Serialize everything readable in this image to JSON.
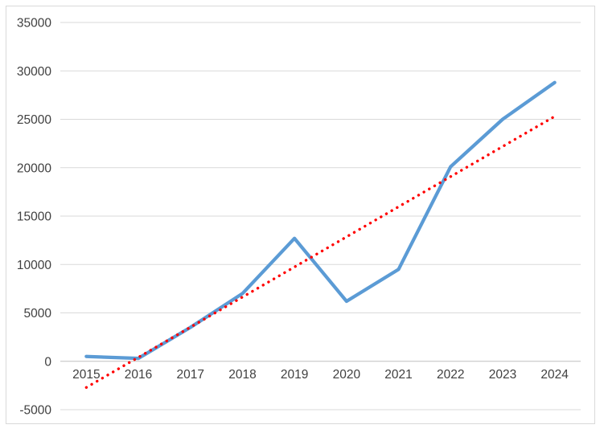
{
  "window": {
    "background": "#FFFFFF"
  },
  "chart_data": {
    "type": "line",
    "title": "",
    "xlabel": "",
    "ylabel": "",
    "categories": [
      "2015",
      "2016",
      "2017",
      "2018",
      "2019",
      "2020",
      "2021",
      "2022",
      "2023",
      "2024"
    ],
    "series": [
      {
        "name": "values",
        "display": "solid",
        "color": "#5B9BD5",
        "values": [
          500,
          300,
          3500,
          7000,
          12700,
          6200,
          9500,
          20100,
          25000,
          28800
        ]
      },
      {
        "name": "linear-trendline",
        "display": "dotted",
        "color": "#FF0000",
        "values": [
          -2700,
          411,
          3522,
          6633,
          9744,
          12856,
          15967,
          19078,
          22189,
          25300
        ]
      }
    ],
    "ylim": [
      -5000,
      35000
    ],
    "ytick_step": 5000,
    "ytick_labels": [
      "-5000",
      "0",
      "5000",
      "10000",
      "15000",
      "20000",
      "25000",
      "30000",
      "35000"
    ],
    "grid": "horizontal",
    "legend_position": "none",
    "colors": {
      "gridline": "#D9D9D9",
      "zero_axis": "#BFBFBF",
      "tick_text": "#404040",
      "chart_border": "#D9D9D9",
      "plot_background": "#FFFFFF"
    }
  }
}
